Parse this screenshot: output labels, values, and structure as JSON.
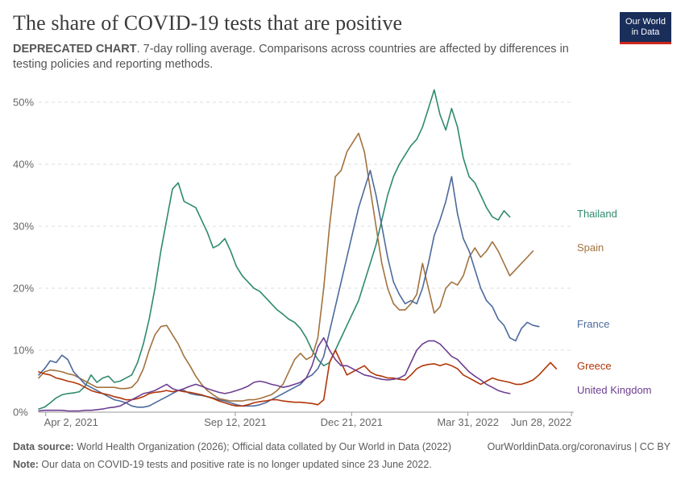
{
  "header": {
    "title": "The share of COVID-19 tests that are positive",
    "subtitle_bold": "DEPRECATED CHART",
    "subtitle_rest": ". 7-day rolling average. Comparisons across countries are affected by differences in testing policies and reporting methods.",
    "logo_line1": "Our World",
    "logo_line2": "in Data"
  },
  "footer": {
    "source_label": "Data source:",
    "source_text": " World Health Organization (2026); Official data collated by Our World in Data (2022)",
    "url": "OurWorldinData.org/coronavirus | CC BY",
    "note_label": "Note:",
    "note_text": " Our data on COVID-19 tests and positive rate is no longer updated since 23 June 2022."
  },
  "colors": {
    "Thailand": "#2e8a6e",
    "Spain": "#a2723e",
    "France": "#4c6a9c",
    "Greece": "#b13507",
    "United Kingdom": "#6d3e91"
  },
  "chart_data": {
    "type": "line",
    "x_unit": "days since start of axis",
    "x_start_date": "2021-03-27",
    "xlim": [
      0,
      460
    ],
    "ylim": [
      0,
      50
    ],
    "yticks": [
      0,
      10,
      20,
      30,
      40,
      50
    ],
    "ytick_labels": [
      "0%",
      "10%",
      "20%",
      "30%",
      "40%",
      "50%"
    ],
    "xticks": [
      6,
      169,
      269,
      369,
      458
    ],
    "xtick_labels": [
      "Apr 2, 2021",
      "Sep 12, 2021",
      "Dec 21, 2021",
      "Mar 31, 2022",
      "Jun 28, 2022"
    ],
    "grid": "horizontal dashed",
    "legend": "labels at line ends (right)",
    "series": [
      {
        "name": "Thailand",
        "x": [
          0,
          5,
          10,
          15,
          20,
          25,
          30,
          35,
          40,
          45,
          50,
          55,
          60,
          65,
          70,
          75,
          80,
          85,
          90,
          95,
          100,
          105,
          110,
          115,
          120,
          125,
          130,
          135,
          140,
          145,
          150,
          155,
          160,
          165,
          170,
          175,
          180,
          185,
          190,
          195,
          200,
          205,
          210,
          215,
          220,
          225,
          230,
          235,
          240,
          245,
          250,
          255,
          260,
          265,
          270,
          275,
          280,
          285,
          290,
          295,
          300,
          305,
          310,
          315,
          320,
          325,
          330,
          335,
          340,
          345,
          350,
          355,
          360,
          365,
          370,
          375,
          380,
          385,
          390,
          395,
          400,
          405,
          410,
          415,
          420,
          425,
          430,
          435,
          440,
          445,
          450,
          455,
          460
        ],
        "y": [
          0.5,
          0.8,
          1.5,
          2.3,
          2.8,
          3.0,
          3.1,
          3.3,
          4.2,
          6.0,
          4.8,
          5.5,
          5.8,
          4.8,
          5.0,
          5.5,
          6.0,
          8.0,
          11.0,
          15.0,
          20.0,
          26.0,
          31.0,
          36.0,
          37.0,
          34.0,
          33.5,
          33.0,
          31.0,
          29.0,
          26.5,
          27.0,
          28.0,
          26.0,
          23.5,
          22.0,
          21.0,
          20.0,
          19.5,
          18.5,
          17.5,
          16.5,
          15.8,
          15.0,
          14.5,
          13.5,
          12.0,
          10.0,
          8.5,
          7.5,
          8.0,
          10.0,
          12.0,
          14.0,
          16.0,
          18.0,
          21.0,
          24.0,
          27.0,
          31.0,
          35.0,
          38.0,
          40.0,
          41.5,
          43.0,
          44.0,
          46.0,
          49.0,
          52.0,
          48.0,
          45.5,
          49.0,
          46.0,
          41.0,
          38.0,
          37.0,
          35.0,
          33.0,
          31.5,
          31.0,
          32.5,
          31.5,
          null,
          null,
          null,
          null,
          null,
          null,
          null,
          null,
          null,
          null,
          null
        ]
      },
      {
        "name": "Spain",
        "x": [
          0,
          5,
          10,
          15,
          20,
          25,
          30,
          35,
          40,
          45,
          50,
          55,
          60,
          65,
          70,
          75,
          80,
          85,
          90,
          95,
          100,
          105,
          110,
          115,
          120,
          125,
          130,
          135,
          140,
          145,
          150,
          155,
          160,
          165,
          170,
          175,
          180,
          185,
          190,
          195,
          200,
          205,
          210,
          215,
          220,
          225,
          230,
          235,
          240,
          245,
          250,
          255,
          260,
          265,
          270,
          275,
          280,
          285,
          290,
          295,
          300,
          305,
          310,
          315,
          320,
          325,
          330,
          335,
          340,
          345,
          350,
          355,
          360,
          365,
          370,
          375,
          380,
          385,
          390,
          395,
          400,
          405,
          410,
          415,
          420,
          425,
          430,
          435,
          440,
          445,
          450,
          455,
          460
        ],
        "y": [
          5.5,
          6.5,
          6.8,
          6.7,
          6.5,
          6.2,
          6.0,
          5.5,
          5.0,
          4.5,
          4.0,
          4.0,
          4.0,
          4.0,
          3.8,
          3.8,
          4.0,
          5.0,
          7.0,
          10.0,
          12.5,
          13.8,
          14.0,
          12.5,
          11.0,
          9.0,
          7.5,
          5.8,
          4.5,
          3.5,
          2.8,
          2.2,
          2.0,
          1.8,
          1.8,
          1.8,
          2.0,
          2.0,
          2.2,
          2.5,
          2.8,
          3.5,
          4.5,
          6.5,
          8.5,
          9.5,
          8.5,
          9.0,
          12.0,
          20.0,
          30.0,
          38.0,
          39.0,
          42.0,
          43.5,
          45.0,
          42.0,
          36.0,
          30.0,
          24.0,
          20.0,
          17.5,
          16.5,
          16.5,
          17.5,
          19.0,
          24.0,
          20.0,
          16.0,
          17.0,
          20.0,
          21.0,
          20.5,
          22.0,
          25.0,
          26.5,
          25.0,
          26.0,
          27.5,
          26.0,
          24.0,
          22.0,
          23.0,
          24.0,
          25.0,
          26.0,
          null,
          null,
          null,
          null,
          null,
          null,
          null
        ]
      },
      {
        "name": "France",
        "x": [
          0,
          5,
          10,
          15,
          20,
          25,
          30,
          35,
          40,
          45,
          50,
          55,
          60,
          65,
          70,
          75,
          80,
          85,
          90,
          95,
          100,
          105,
          110,
          115,
          120,
          125,
          130,
          135,
          140,
          145,
          150,
          155,
          160,
          165,
          170,
          175,
          180,
          185,
          190,
          195,
          200,
          205,
          210,
          215,
          220,
          225,
          230,
          235,
          240,
          245,
          250,
          255,
          260,
          265,
          270,
          275,
          280,
          285,
          290,
          295,
          300,
          305,
          310,
          315,
          320,
          325,
          330,
          335,
          340,
          345,
          350,
          355,
          360,
          365,
          370,
          375,
          380,
          385,
          390,
          395,
          400,
          405,
          410,
          415,
          420,
          425,
          430,
          435,
          440,
          445,
          450,
          455,
          460
        ],
        "y": [
          6.0,
          7.0,
          8.3,
          8.0,
          9.2,
          8.5,
          6.5,
          5.5,
          4.5,
          4.0,
          3.5,
          3.0,
          2.5,
          2.0,
          1.8,
          1.5,
          1.0,
          0.8,
          0.8,
          1.0,
          1.5,
          2.0,
          2.5,
          3.0,
          3.5,
          3.5,
          3.0,
          2.8,
          2.7,
          2.5,
          2.3,
          2.0,
          1.8,
          1.5,
          1.2,
          1.0,
          1.0,
          1.0,
          1.2,
          1.5,
          2.0,
          2.5,
          3.0,
          3.5,
          4.0,
          4.5,
          5.5,
          6.0,
          7.0,
          9.0,
          13.0,
          17.0,
          21.0,
          25.0,
          29.0,
          33.0,
          36.0,
          39.0,
          35.0,
          30.0,
          25.0,
          21.0,
          19.0,
          17.5,
          18.0,
          17.5,
          20.0,
          24.0,
          28.5,
          31.0,
          34.0,
          38.0,
          32.0,
          28.0,
          26.0,
          23.0,
          20.0,
          18.0,
          17.0,
          15.0,
          14.0,
          12.0,
          11.5,
          13.5,
          14.5,
          14.0,
          13.8,
          null,
          null,
          null,
          null,
          null,
          null
        ]
      },
      {
        "name": "Greece",
        "x": [
          0,
          5,
          10,
          15,
          20,
          25,
          30,
          35,
          40,
          45,
          50,
          55,
          60,
          65,
          70,
          75,
          80,
          85,
          90,
          95,
          100,
          105,
          110,
          115,
          120,
          125,
          130,
          135,
          140,
          145,
          150,
          155,
          160,
          165,
          170,
          175,
          180,
          185,
          190,
          195,
          200,
          205,
          210,
          215,
          220,
          225,
          230,
          235,
          240,
          245,
          250,
          255,
          260,
          265,
          270,
          275,
          280,
          285,
          290,
          295,
          300,
          305,
          310,
          315,
          320,
          325,
          330,
          335,
          340,
          345,
          350,
          355,
          360,
          365,
          370,
          375,
          380,
          385,
          390,
          395,
          400,
          405,
          410,
          415,
          420,
          425,
          430,
          435,
          440,
          445,
          450,
          455,
          460
        ],
        "y": [
          6.5,
          6.2,
          6.0,
          5.5,
          5.3,
          5.0,
          4.8,
          4.5,
          4.0,
          3.5,
          3.2,
          3.0,
          2.8,
          2.5,
          2.3,
          2.0,
          2.0,
          2.2,
          2.5,
          3.0,
          3.2,
          3.3,
          3.5,
          3.3,
          3.5,
          3.3,
          3.2,
          3.0,
          2.8,
          2.5,
          2.2,
          1.8,
          1.5,
          1.2,
          1.0,
          1.0,
          1.2,
          1.5,
          1.7,
          1.8,
          2.0,
          2.0,
          1.8,
          1.7,
          1.6,
          1.6,
          1.5,
          1.4,
          1.2,
          2.0,
          8.0,
          10.0,
          8.0,
          6.0,
          6.5,
          7.0,
          7.5,
          6.5,
          6.0,
          5.8,
          5.5,
          5.5,
          5.3,
          5.2,
          6.0,
          7.0,
          7.5,
          7.7,
          7.8,
          7.5,
          7.8,
          7.5,
          7.0,
          6.0,
          5.5,
          5.0,
          4.5,
          5.0,
          5.5,
          5.2,
          5.0,
          4.8,
          4.5,
          4.5,
          4.8,
          5.2,
          6.0,
          7.0,
          8.0,
          7.0,
          null,
          null,
          null
        ]
      },
      {
        "name": "United Kingdom",
        "x": [
          0,
          5,
          10,
          15,
          20,
          25,
          30,
          35,
          40,
          45,
          50,
          55,
          60,
          65,
          70,
          75,
          80,
          85,
          90,
          95,
          100,
          105,
          110,
          115,
          120,
          125,
          130,
          135,
          140,
          145,
          150,
          155,
          160,
          165,
          170,
          175,
          180,
          185,
          190,
          195,
          200,
          205,
          210,
          215,
          220,
          225,
          230,
          235,
          240,
          245,
          250,
          255,
          260,
          265,
          270,
          275,
          280,
          285,
          290,
          295,
          300,
          305,
          310,
          315,
          320,
          325,
          330,
          335,
          340,
          345,
          350,
          355,
          360,
          365,
          370,
          375,
          380,
          385,
          390,
          395,
          400,
          405,
          410,
          415,
          420,
          425,
          430,
          435,
          440,
          445,
          450,
          455,
          460
        ],
        "y": [
          0.2,
          0.3,
          0.3,
          0.3,
          0.3,
          0.2,
          0.2,
          0.2,
          0.3,
          0.3,
          0.4,
          0.5,
          0.7,
          0.8,
          1.0,
          1.5,
          2.0,
          2.5,
          3.0,
          3.2,
          3.5,
          4.0,
          4.5,
          3.8,
          3.5,
          3.8,
          4.2,
          4.5,
          4.2,
          3.8,
          3.5,
          3.2,
          3.0,
          3.2,
          3.5,
          3.8,
          4.2,
          4.8,
          5.0,
          4.8,
          4.5,
          4.3,
          4.0,
          4.2,
          4.5,
          4.8,
          5.5,
          7.5,
          10.5,
          12.0,
          10.0,
          8.5,
          7.5,
          7.5,
          7.0,
          6.5,
          6.0,
          5.8,
          5.5,
          5.3,
          5.2,
          5.3,
          5.5,
          6.0,
          8.0,
          10.0,
          11.0,
          11.5,
          11.5,
          11.0,
          10.0,
          9.0,
          8.5,
          7.5,
          6.5,
          5.8,
          5.2,
          4.5,
          4.0,
          3.5,
          3.2,
          3.0,
          null,
          null,
          null,
          null,
          null,
          null,
          null,
          null,
          null,
          null,
          null
        ]
      }
    ]
  }
}
